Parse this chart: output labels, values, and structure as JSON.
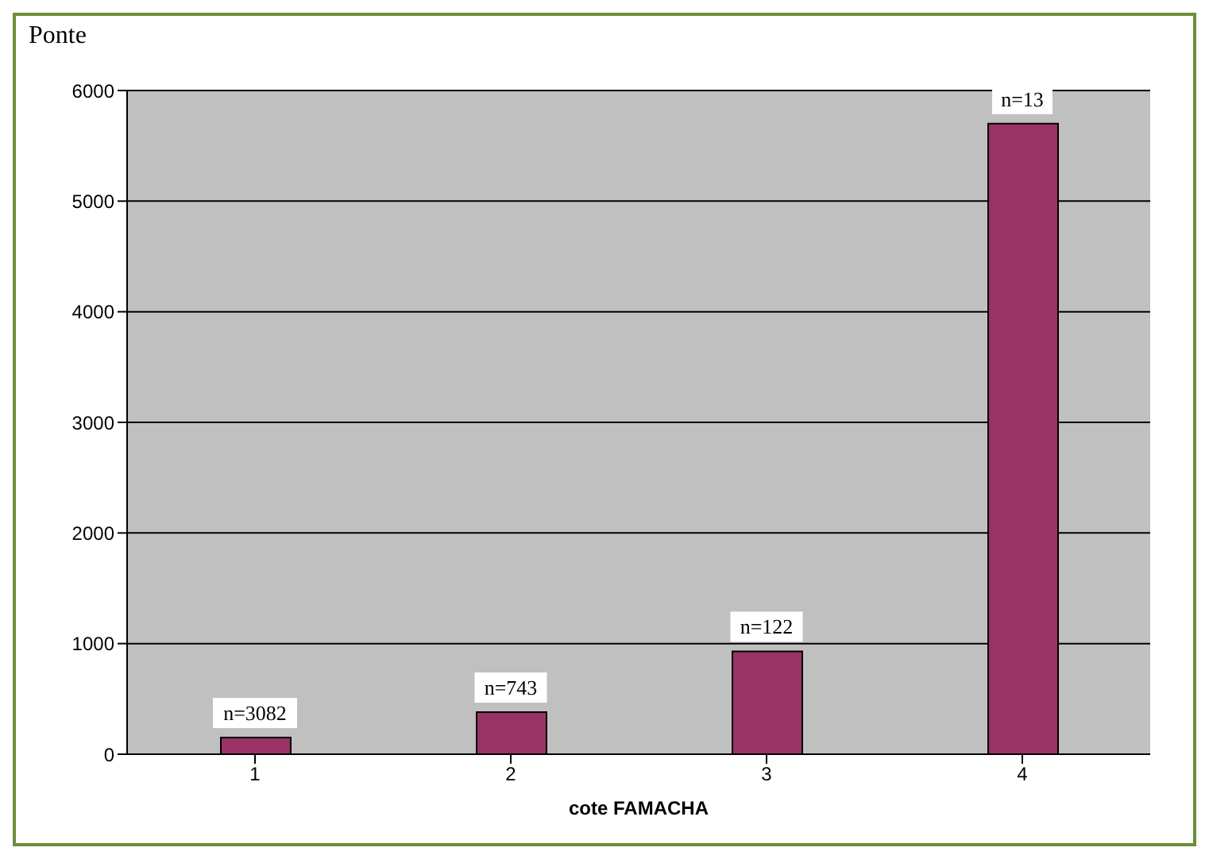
{
  "chart_data": {
    "type": "bar",
    "title": "Ponte",
    "xlabel": "cote FAMACHA",
    "categories": [
      "1",
      "2",
      "3",
      "4"
    ],
    "values": [
      150,
      380,
      930,
      5700
    ],
    "color": "#993366",
    "ylim": [
      0,
      6000
    ],
    "yticks": [
      0,
      1000,
      2000,
      3000,
      4000,
      5000,
      6000
    ],
    "grid": "y",
    "annotations": [
      {
        "text": "n=3082",
        "x": "1",
        "y": 150
      },
      {
        "text": "n=743",
        "x": "2",
        "y": 380
      },
      {
        "text": "n=122",
        "x": "3",
        "y": 930
      },
      {
        "text": "n=13",
        "x": "4",
        "y": 5700
      }
    ]
  }
}
